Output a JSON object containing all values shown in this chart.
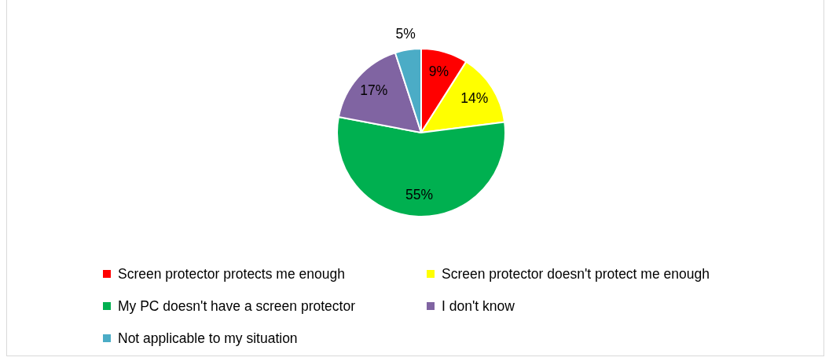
{
  "chart_data": {
    "type": "pie",
    "categories": [
      "Screen protector protects me enough",
      "Screen protector doesn't protect me enough",
      "My PC doesn't have a screen protector",
      "I don't know",
      "Not applicable to my situation"
    ],
    "values": [
      9,
      14,
      55,
      17,
      5
    ],
    "colors": [
      "#ff0000",
      "#ffff00",
      "#00b050",
      "#8064a2",
      "#4bacc6"
    ],
    "value_labels": [
      "9%",
      "14%",
      "55%",
      "17%",
      "5%"
    ],
    "legend": "bottom"
  }
}
